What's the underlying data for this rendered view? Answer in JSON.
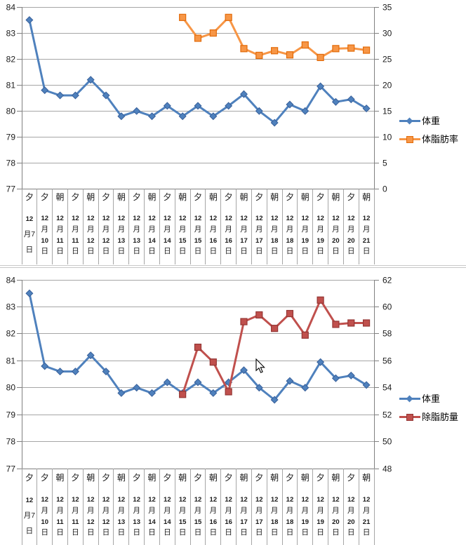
{
  "page": {
    "background": "#FFFFFF"
  },
  "colors": {
    "gridline": "#A6A6A6",
    "axis_line": "#808080",
    "label_separator": "#A6A6A6",
    "chart_border": "#C8C8C8",
    "text": "#1A1A1A"
  },
  "chart_data": [
    {
      "type": "line",
      "title": "",
      "legend_position": "right",
      "grid": true,
      "left_axis": {
        "label": "",
        "min": 77,
        "max": 84,
        "step": 1,
        "ticks": [
          84,
          83,
          82,
          81,
          80,
          79,
          78,
          77
        ]
      },
      "right_axis": {
        "label": "",
        "min": 0,
        "max": 35,
        "step": 5,
        "ticks": [
          35,
          30,
          25,
          20,
          15,
          10,
          5,
          0
        ]
      },
      "categories": [
        {
          "period": "夕",
          "date": "12月7日",
          "date_lines": [
            "12",
            "月7",
            "日"
          ]
        },
        {
          "period": "夕",
          "date": "12月10日",
          "date_lines": [
            "12",
            "月",
            "10",
            "日"
          ]
        },
        {
          "period": "朝",
          "date": "12月11日",
          "date_lines": [
            "12",
            "月",
            "11",
            "日"
          ]
        },
        {
          "period": "夕",
          "date": "12月11日",
          "date_lines": [
            "12",
            "月",
            "11",
            "日"
          ]
        },
        {
          "period": "朝",
          "date": "12月12日",
          "date_lines": [
            "12",
            "月",
            "12",
            "日"
          ]
        },
        {
          "period": "夕",
          "date": "12月12日",
          "date_lines": [
            "12",
            "月",
            "12",
            "日"
          ]
        },
        {
          "period": "朝",
          "date": "12月13日",
          "date_lines": [
            "12",
            "月",
            "13",
            "日"
          ]
        },
        {
          "period": "夕",
          "date": "12月13日",
          "date_lines": [
            "12",
            "月",
            "13",
            "日"
          ]
        },
        {
          "period": "朝",
          "date": "12月14日",
          "date_lines": [
            "12",
            "月",
            "14",
            "日"
          ]
        },
        {
          "period": "夕",
          "date": "12月14日",
          "date_lines": [
            "12",
            "月",
            "14",
            "日"
          ]
        },
        {
          "period": "朝",
          "date": "12月15日",
          "date_lines": [
            "12",
            "月",
            "15",
            "日"
          ]
        },
        {
          "period": "夕",
          "date": "12月15日",
          "date_lines": [
            "12",
            "月",
            "15",
            "日"
          ]
        },
        {
          "period": "朝",
          "date": "12月16日",
          "date_lines": [
            "12",
            "月",
            "16",
            "日"
          ]
        },
        {
          "period": "夕",
          "date": "12月16日",
          "date_lines": [
            "12",
            "月",
            "16",
            "日"
          ]
        },
        {
          "period": "朝",
          "date": "12月17日",
          "date_lines": [
            "12",
            "月",
            "17",
            "日"
          ]
        },
        {
          "period": "夕",
          "date": "12月17日",
          "date_lines": [
            "12",
            "月",
            "17",
            "日"
          ]
        },
        {
          "period": "朝",
          "date": "12月18日",
          "date_lines": [
            "12",
            "月",
            "18",
            "日"
          ]
        },
        {
          "period": "夕",
          "date": "12月18日",
          "date_lines": [
            "12",
            "月",
            "18",
            "日"
          ]
        },
        {
          "period": "朝",
          "date": "12月19日",
          "date_lines": [
            "12",
            "月",
            "19",
            "日"
          ]
        },
        {
          "period": "夕",
          "date": "12月19日",
          "date_lines": [
            "12",
            "月",
            "19",
            "日"
          ]
        },
        {
          "period": "朝",
          "date": "12月20日",
          "date_lines": [
            "12",
            "月",
            "20",
            "日"
          ]
        },
        {
          "period": "夕",
          "date": "12月20日",
          "date_lines": [
            "12",
            "月",
            "20",
            "日"
          ]
        },
        {
          "period": "朝",
          "date": "12月21日",
          "date_lines": [
            "12",
            "月",
            "21",
            "日"
          ]
        }
      ],
      "series": [
        {
          "id": "weight",
          "name": "体重",
          "axis": "left",
          "marker": "diamond",
          "color": "#4F81BD",
          "border": "#38609A",
          "values": [
            83.5,
            80.8,
            80.6,
            80.6,
            81.2,
            80.6,
            79.8,
            80.0,
            79.8,
            80.2,
            79.8,
            80.2,
            79.8,
            80.2,
            80.65,
            80.0,
            79.55,
            80.25,
            80.0,
            80.95,
            80.35,
            80.45,
            80.1
          ]
        },
        {
          "id": "bodyfat",
          "name": "体脂肪率",
          "axis": "right",
          "marker": "square",
          "color": "#F79646",
          "border": "#E26B0A",
          "values": [
            null,
            null,
            null,
            null,
            null,
            null,
            null,
            null,
            null,
            null,
            33.0,
            29.0,
            30.0,
            33.0,
            27.0,
            25.7,
            26.6,
            25.8,
            27.7,
            25.3,
            27.0,
            27.1,
            26.7
          ]
        }
      ]
    },
    {
      "type": "line",
      "title": "",
      "legend_position": "right",
      "grid": true,
      "left_axis": {
        "label": "",
        "min": 77,
        "max": 84,
        "step": 1,
        "ticks": [
          84,
          83,
          82,
          81,
          80,
          79,
          78,
          77
        ]
      },
      "right_axis": {
        "label": "",
        "min": 48,
        "max": 62,
        "step": 2,
        "ticks": [
          62,
          60,
          58,
          56,
          54,
          52,
          50,
          48
        ]
      },
      "categories": [
        {
          "period": "夕",
          "date": "12月7日",
          "date_lines": [
            "12",
            "月7",
            "日"
          ]
        },
        {
          "period": "夕",
          "date": "12月10日",
          "date_lines": [
            "12",
            "月",
            "10",
            "日"
          ]
        },
        {
          "period": "朝",
          "date": "12月11日",
          "date_lines": [
            "12",
            "月",
            "11",
            "日"
          ]
        },
        {
          "period": "夕",
          "date": "12月11日",
          "date_lines": [
            "12",
            "月",
            "11",
            "日"
          ]
        },
        {
          "period": "朝",
          "date": "12月12日",
          "date_lines": [
            "12",
            "月",
            "12",
            "日"
          ]
        },
        {
          "period": "夕",
          "date": "12月12日",
          "date_lines": [
            "12",
            "月",
            "12",
            "日"
          ]
        },
        {
          "period": "朝",
          "date": "12月13日",
          "date_lines": [
            "12",
            "月",
            "13",
            "日"
          ]
        },
        {
          "period": "夕",
          "date": "12月13日",
          "date_lines": [
            "12",
            "月",
            "13",
            "日"
          ]
        },
        {
          "period": "朝",
          "date": "12月14日",
          "date_lines": [
            "12",
            "月",
            "14",
            "日"
          ]
        },
        {
          "period": "夕",
          "date": "12月14日",
          "date_lines": [
            "12",
            "月",
            "14",
            "日"
          ]
        },
        {
          "period": "朝",
          "date": "12月15日",
          "date_lines": [
            "12",
            "月",
            "15",
            "日"
          ]
        },
        {
          "period": "夕",
          "date": "12月15日",
          "date_lines": [
            "12",
            "月",
            "15",
            "日"
          ]
        },
        {
          "period": "朝",
          "date": "12月16日",
          "date_lines": [
            "12",
            "月",
            "16",
            "日"
          ]
        },
        {
          "period": "夕",
          "date": "12月16日",
          "date_lines": [
            "12",
            "月",
            "16",
            "日"
          ]
        },
        {
          "period": "朝",
          "date": "12月17日",
          "date_lines": [
            "12",
            "月",
            "17",
            "日"
          ]
        },
        {
          "period": "夕",
          "date": "12月17日",
          "date_lines": [
            "12",
            "月",
            "17",
            "日"
          ]
        },
        {
          "period": "朝",
          "date": "12月18日",
          "date_lines": [
            "12",
            "月",
            "18",
            "日"
          ]
        },
        {
          "period": "夕",
          "date": "12月18日",
          "date_lines": [
            "12",
            "月",
            "18",
            "日"
          ]
        },
        {
          "period": "朝",
          "date": "12月19日",
          "date_lines": [
            "12",
            "月",
            "19",
            "日"
          ]
        },
        {
          "period": "夕",
          "date": "12月19日",
          "date_lines": [
            "12",
            "月",
            "19",
            "日"
          ]
        },
        {
          "period": "朝",
          "date": "12月20日",
          "date_lines": [
            "12",
            "月",
            "20",
            "日"
          ]
        },
        {
          "period": "夕",
          "date": "12月20日",
          "date_lines": [
            "12",
            "月",
            "20",
            "日"
          ]
        },
        {
          "period": "朝",
          "date": "12月21日",
          "date_lines": [
            "12",
            "月",
            "21",
            "日"
          ]
        }
      ],
      "series": [
        {
          "id": "weight",
          "name": "体重",
          "axis": "left",
          "marker": "diamond",
          "color": "#4F81BD",
          "border": "#38609A",
          "values": [
            83.5,
            80.8,
            80.6,
            80.6,
            81.2,
            80.6,
            79.8,
            80.0,
            79.8,
            80.2,
            79.8,
            80.2,
            79.8,
            80.2,
            80.65,
            80.0,
            79.55,
            80.25,
            80.0,
            80.95,
            80.35,
            80.45,
            80.1
          ]
        },
        {
          "id": "leanmass",
          "name": "除脂肪量",
          "axis": "right",
          "marker": "square",
          "color": "#C0504D",
          "border": "#943634",
          "values": [
            null,
            null,
            null,
            null,
            null,
            null,
            null,
            null,
            null,
            null,
            53.5,
            57.0,
            55.9,
            53.7,
            58.9,
            59.4,
            58.4,
            59.5,
            57.9,
            60.5,
            58.7,
            58.8,
            58.8
          ]
        }
      ]
    }
  ]
}
